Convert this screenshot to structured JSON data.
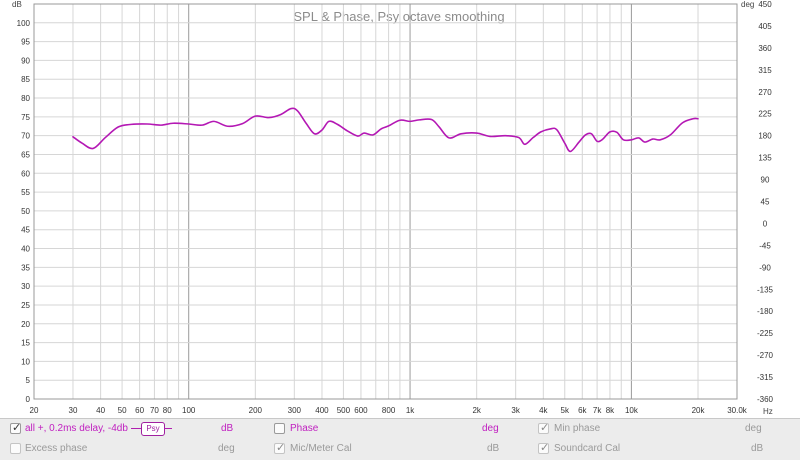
{
  "chart_data": {
    "type": "line",
    "title": "SPL & Phase, Psy octave smoothing",
    "xlabel": "Hz",
    "ylabel": "dB",
    "y2label": "deg",
    "x_scale": "log",
    "xlim": [
      20,
      30000
    ],
    "ylim": [
      0,
      105
    ],
    "y2lim": [
      -360,
      450
    ],
    "grid": true,
    "x_tick_labels": [
      {
        "v": 20,
        "t": "20"
      },
      {
        "v": 30,
        "t": "30"
      },
      {
        "v": 40,
        "t": "40"
      },
      {
        "v": 50,
        "t": "50"
      },
      {
        "v": 60,
        "t": "60"
      },
      {
        "v": 70,
        "t": "70"
      },
      {
        "v": 80,
        "t": "80"
      },
      {
        "v": 100,
        "t": "100"
      },
      {
        "v": 200,
        "t": "200"
      },
      {
        "v": 300,
        "t": "300"
      },
      {
        "v": 400,
        "t": "400"
      },
      {
        "v": 500,
        "t": "500"
      },
      {
        "v": 600,
        "t": "600"
      },
      {
        "v": 800,
        "t": "800"
      },
      {
        "v": 1000,
        "t": "1k"
      },
      {
        "v": 2000,
        "t": "2k"
      },
      {
        "v": 3000,
        "t": "3k"
      },
      {
        "v": 4000,
        "t": "4k"
      },
      {
        "v": 5000,
        "t": "5k"
      },
      {
        "v": 6000,
        "t": "6k"
      },
      {
        "v": 7000,
        "t": "7k"
      },
      {
        "v": 8000,
        "t": "8k"
      },
      {
        "v": 10000,
        "t": "10k"
      },
      {
        "v": 20000,
        "t": "20k"
      },
      {
        "v": 30000,
        "t": "30.0k"
      }
    ],
    "y_tick_labels": [
      "0",
      "5",
      "10",
      "15",
      "20",
      "25",
      "30",
      "35",
      "40",
      "45",
      "50",
      "55",
      "60",
      "65",
      "70",
      "75",
      "80",
      "85",
      "90",
      "95",
      "100"
    ],
    "y2_tick_labels": [
      "-360",
      "-315",
      "-270",
      "-225",
      "-180",
      "-135",
      "-90",
      "-45",
      "0",
      "45",
      "90",
      "135",
      "180",
      "225",
      "270",
      "315",
      "360",
      "405",
      "450"
    ],
    "series": [
      {
        "name": "all +, 0.2ms delay, -4db",
        "color": "#b418b4",
        "x": [
          30,
          33,
          37,
          42,
          48,
          55,
          65,
          75,
          85,
          100,
          115,
          130,
          150,
          175,
          200,
          230,
          260,
          290,
          310,
          340,
          370,
          400,
          430,
          470,
          520,
          580,
          620,
          680,
          740,
          800,
          900,
          1000,
          1100,
          1250,
          1350,
          1500,
          1700,
          2000,
          2300,
          2700,
          3100,
          3300,
          3600,
          3900,
          4300,
          4600,
          5000,
          5300,
          5800,
          6200,
          6600,
          7000,
          7400,
          8000,
          8600,
          9200,
          10000,
          10800,
          11500,
          12500,
          13500,
          15000,
          17000,
          19000,
          20000
        ],
        "values": [
          69.7,
          68.0,
          66.6,
          69.5,
          72.3,
          73.0,
          73.1,
          72.8,
          73.3,
          73.1,
          72.8,
          73.8,
          72.5,
          73.2,
          75.2,
          74.8,
          75.6,
          77.2,
          76.6,
          73.2,
          70.5,
          71.5,
          73.8,
          73.0,
          71.3,
          69.9,
          70.7,
          70.2,
          71.8,
          72.6,
          74.1,
          73.8,
          74.2,
          74.3,
          72.4,
          69.4,
          70.5,
          70.7,
          69.8,
          70.0,
          69.5,
          67.7,
          69.5,
          71.0,
          71.8,
          71.6,
          68.0,
          65.8,
          68.3,
          70.2,
          70.5,
          68.5,
          69.0,
          71.0,
          70.9,
          68.9,
          68.9,
          69.4,
          68.3,
          69.1,
          68.9,
          70.2,
          73.4,
          74.5,
          74.5
        ]
      }
    ]
  },
  "legend": {
    "row1": [
      {
        "label": "all +, 0.2ms delay, -4db",
        "checked": true,
        "enabled": true,
        "unit": "",
        "badge": "Psy"
      },
      {
        "label": "",
        "unit": "dB"
      },
      {
        "label": "Phase",
        "checked": false,
        "enabled": true,
        "unit": "deg"
      },
      {
        "label": "Min phase",
        "checked": true,
        "enabled": false,
        "unit": "deg"
      }
    ],
    "row2": [
      {
        "label": "Excess phase",
        "checked": false,
        "enabled": false,
        "unit": "deg"
      },
      {
        "label": "Mic/Meter Cal",
        "checked": true,
        "enabled": false,
        "unit": "dB"
      },
      {
        "label": "Soundcard Cal",
        "checked": true,
        "enabled": false,
        "unit": "dB"
      }
    ]
  }
}
